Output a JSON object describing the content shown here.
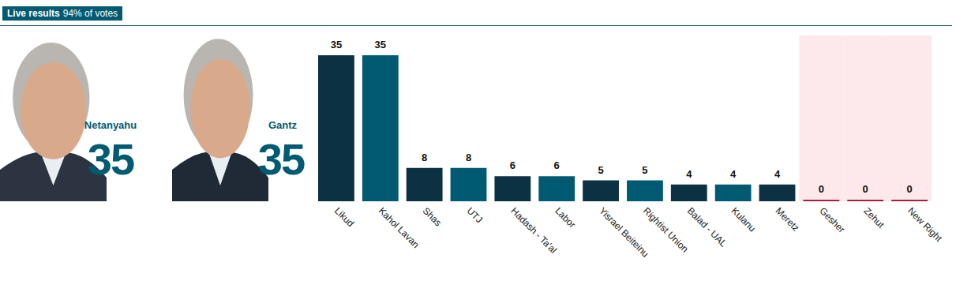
{
  "chart_data": {
    "type": "bar",
    "title": "Live results",
    "subtitle": "94% of votes",
    "annotations": [
      {
        "label": "Netanyahu",
        "value": 35
      },
      {
        "label": "Gantz",
        "value": 35
      }
    ],
    "categories": [
      "Likud",
      "Kahol Lavan",
      "Shas",
      "UTJ",
      "Hadash - Ta'al",
      "Labor",
      "Yisrael Beiteinu",
      "Rightist Union",
      "Balad - UAL",
      "Kulanu",
      "Meretz",
      "Gesher",
      "Zehut",
      "New Right"
    ],
    "values": [
      35,
      35,
      8,
      8,
      6,
      6,
      5,
      5,
      4,
      4,
      4,
      0,
      0,
      0
    ],
    "colors": [
      "#0b3142",
      "#005a72",
      "#0b3142",
      "#005a72",
      "#0b3142",
      "#005a72",
      "#0b3142",
      "#005a72",
      "#0b3142",
      "#005a72",
      "#0b3142",
      "#a3213f",
      "#a3213f",
      "#a3213f"
    ],
    "ylim": [
      0,
      35
    ],
    "data_labels": true,
    "tick_labels": "x",
    "grid": false
  }
}
